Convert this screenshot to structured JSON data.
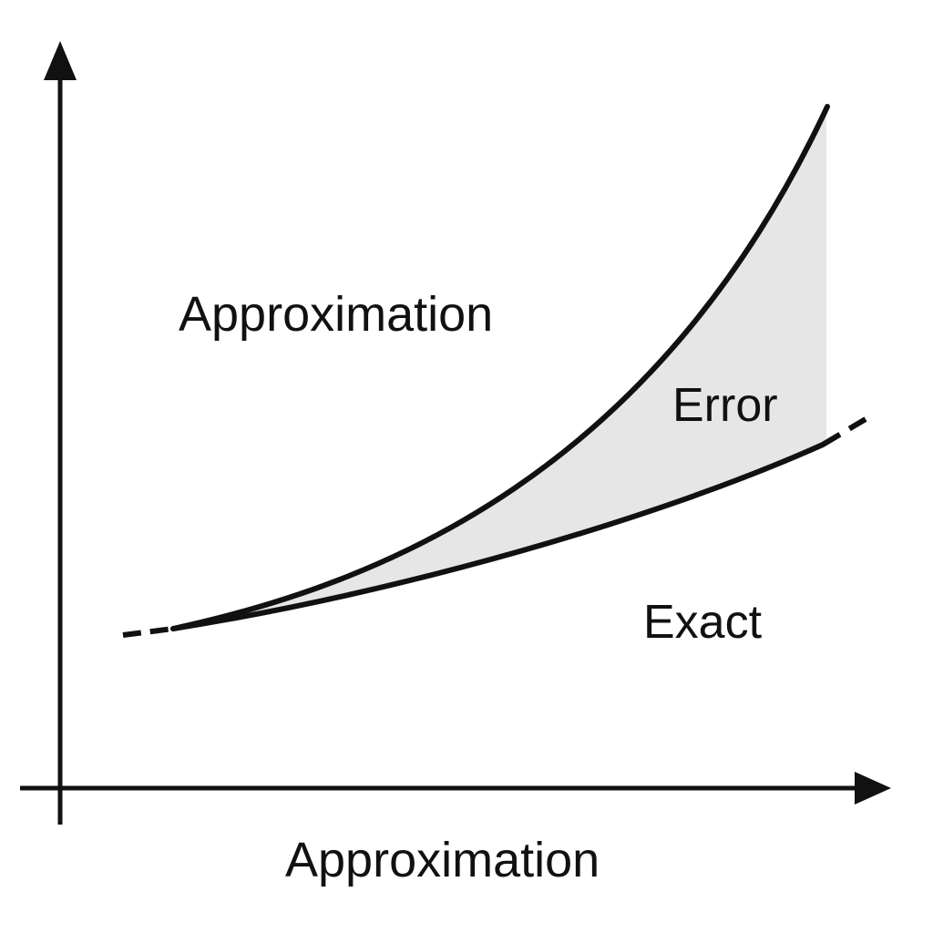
{
  "labels": {
    "curve_label": "Approximation",
    "region_label": "Error",
    "exact_label": "Exact",
    "x_axis_label": "Approximation"
  },
  "colors": {
    "ink": "#111111",
    "error_fill": "#e6e6e6",
    "background": "#ffffff"
  }
}
